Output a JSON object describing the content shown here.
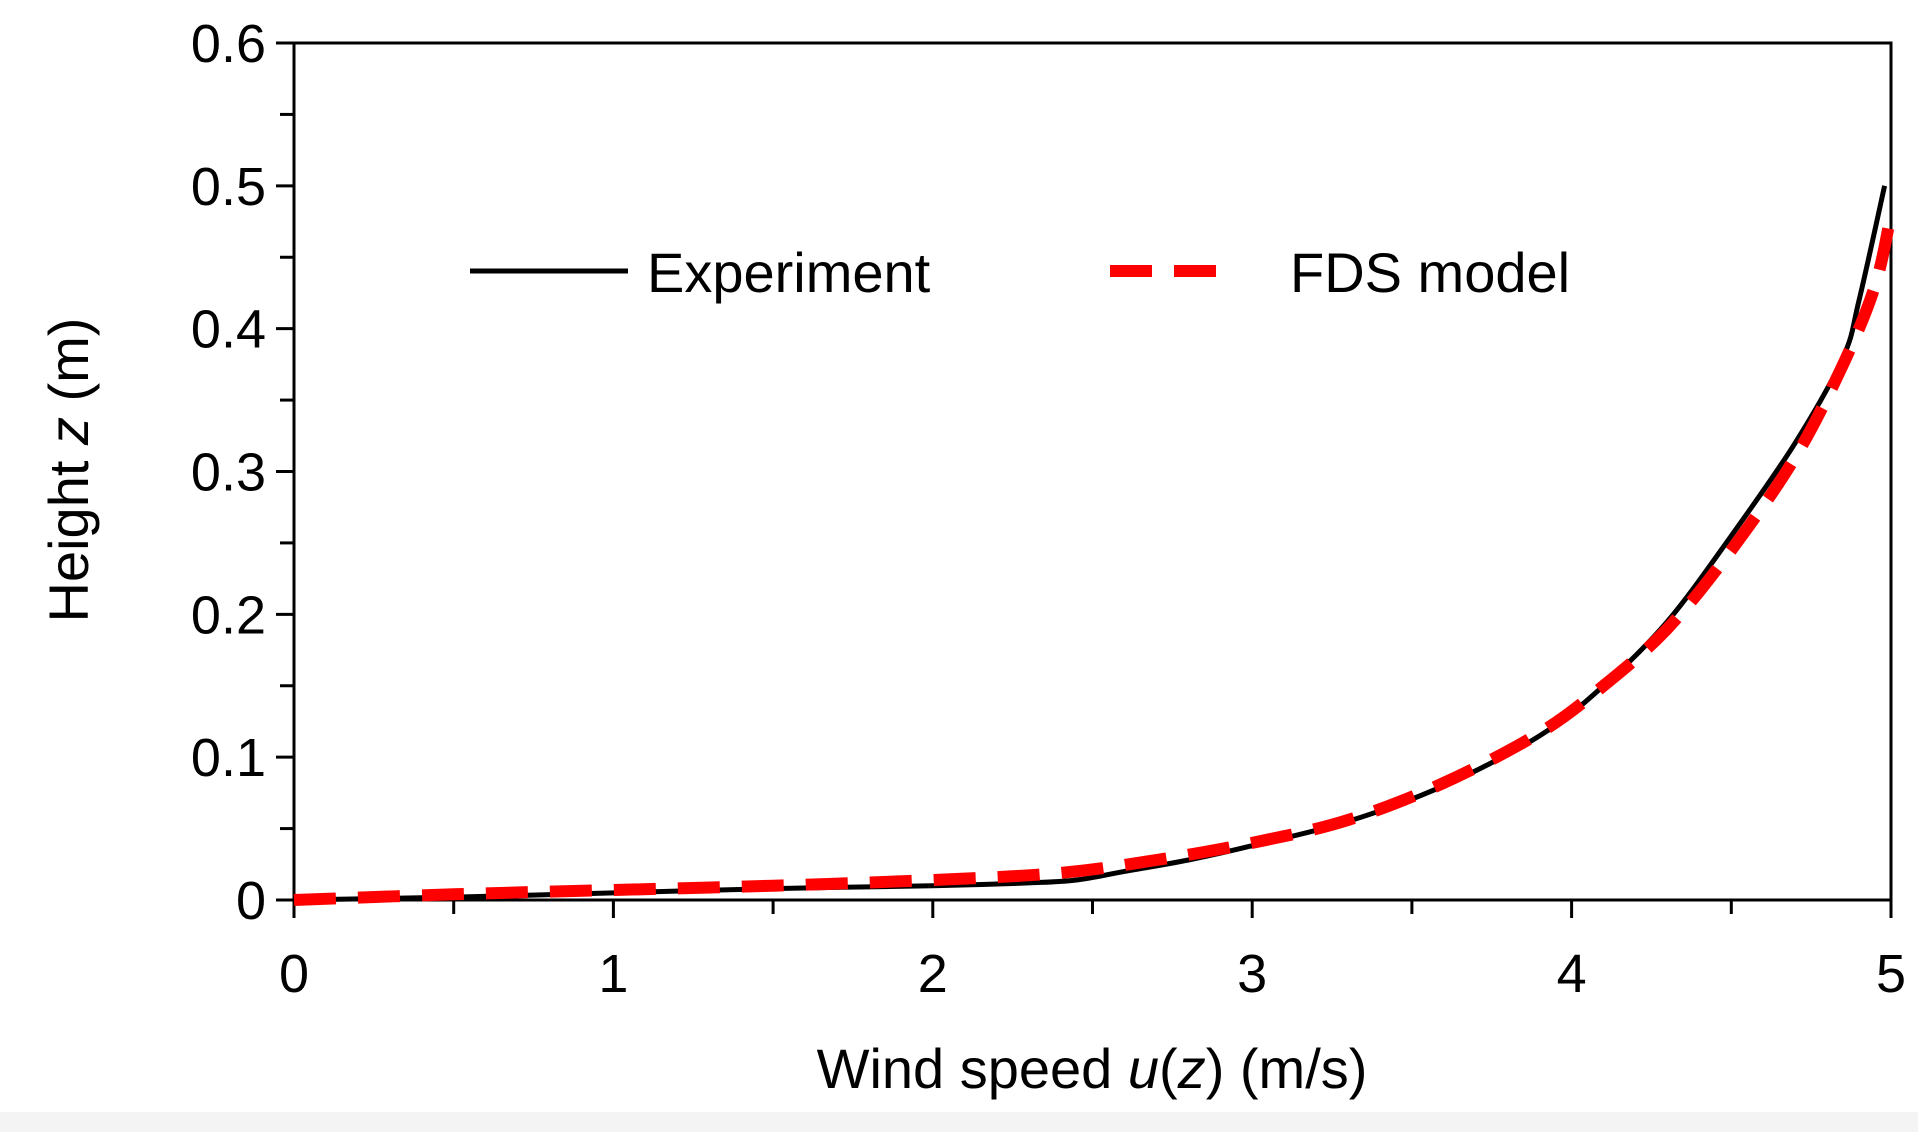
{
  "chart_data": {
    "type": "line",
    "title": "",
    "xlabel": {
      "prefix": "Wind speed ",
      "italic": "u",
      "mid1": "(",
      "italic2": "z",
      "suffix": ") (m/s)"
    },
    "ylabel": {
      "prefix": "Height ",
      "italic": "z",
      "suffix": " (m)"
    },
    "xlim": [
      0,
      5
    ],
    "ylim": [
      0,
      0.6
    ],
    "xticks": [
      0,
      1,
      2,
      3,
      4,
      5
    ],
    "xtick_labels": [
      "0",
      "1",
      "2",
      "3",
      "4",
      "5"
    ],
    "yticks": [
      0,
      0.1,
      0.2,
      0.3,
      0.4,
      0.5,
      0.6
    ],
    "ytick_labels": [
      "0",
      "0.1",
      "0.2",
      "0.3",
      "0.4",
      "0.5",
      "0.6"
    ],
    "grid": false,
    "legend_position": "top",
    "series": [
      {
        "name": "Experiment",
        "color": "#000000",
        "style": "solid",
        "x": [
          0,
          0.5,
          1.0,
          1.5,
          2.0,
          2.3,
          2.45,
          2.6,
          2.8,
          3.0,
          3.3,
          3.6,
          3.9,
          4.1,
          4.3,
          4.5,
          4.7,
          4.85,
          4.9,
          4.98
        ],
        "y": [
          0,
          0.002,
          0.005,
          0.008,
          0.01,
          0.012,
          0.014,
          0.02,
          0.028,
          0.038,
          0.055,
          0.08,
          0.115,
          0.15,
          0.195,
          0.255,
          0.32,
          0.38,
          0.42,
          0.5
        ]
      },
      {
        "name": "FDS model",
        "color": "#ff0000",
        "style": "dashed",
        "x": [
          0,
          0.5,
          1.0,
          1.5,
          2.0,
          2.4,
          2.7,
          3.0,
          3.3,
          3.6,
          3.9,
          4.1,
          4.3,
          4.5,
          4.7,
          4.85,
          4.95,
          5.0
        ],
        "y": [
          0,
          0.004,
          0.007,
          0.01,
          0.014,
          0.019,
          0.028,
          0.04,
          0.056,
          0.082,
          0.117,
          0.15,
          0.19,
          0.245,
          0.31,
          0.375,
          0.43,
          0.48
        ]
      }
    ]
  }
}
